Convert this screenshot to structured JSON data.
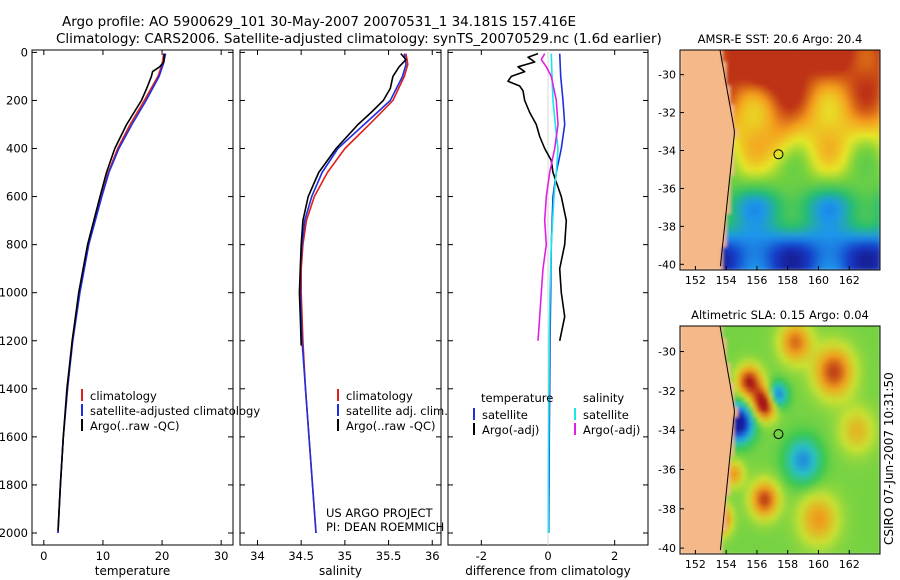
{
  "header": {
    "line1": "Argo profile: AO 5900629_101 30-May-2007 20070531_1 34.181S 157.416E",
    "line2": "Climatology: CARS2006. Satellite-adjusted climatology: synTS_20070529.nc (1.6d earlier)"
  },
  "credits": {
    "project": "US ARGO PROJECT",
    "pi": "PI: DEAN ROEMMICH",
    "stamp": "CSIRO 07-Jun-2007 10:31:50"
  },
  "colors": {
    "climatology": "#e0201a",
    "satellite": "#1f2fe0",
    "argo": "#000000",
    "salinity_sat": "#18e8e8",
    "salinity_argo": "#e020e0",
    "land": "#f5b888"
  },
  "chart_data": [
    {
      "id": "temperature",
      "type": "line",
      "xlabel": "temperature",
      "ylabel": "",
      "xlim": [
        -2,
        32
      ],
      "ylim": [
        2050,
        -10
      ],
      "xticks": [
        "0",
        "10",
        "20",
        "30"
      ],
      "yticks": [
        "0",
        "200",
        "400",
        "600",
        "800",
        "1000",
        "1200",
        "1400",
        "1600",
        "1800",
        "2000"
      ],
      "legend_position": "bottom-left",
      "legend": [
        "climatology",
        "satellite-adjusted climatology",
        "Argo(..raw -QC)"
      ],
      "series": [
        {
          "name": "climatology",
          "depth": [
            5,
            50,
            100,
            200,
            300,
            400,
            500,
            600,
            800,
            1000,
            1200,
            1400,
            1600,
            1800,
            2000
          ],
          "values": [
            20.3,
            20.0,
            19.3,
            17.0,
            14.6,
            12.5,
            10.9,
            9.7,
            7.5,
            6.0,
            4.8,
            4.0,
            3.3,
            2.8,
            2.4
          ]
        },
        {
          "name": "satellite-adjusted climatology",
          "depth": [
            5,
            50,
            100,
            200,
            300,
            400,
            500,
            600,
            800,
            1000,
            1200,
            1400,
            1600,
            1800,
            2000
          ],
          "values": [
            20.6,
            20.2,
            19.5,
            17.3,
            14.9,
            12.7,
            11.0,
            9.8,
            7.6,
            6.1,
            4.9,
            4.0,
            3.3,
            2.8,
            2.4
          ]
        },
        {
          "name": "Argo(..raw -QC)",
          "depth": [
            5,
            40,
            60,
            80,
            100,
            150,
            200,
            300,
            400,
            500,
            600,
            800,
            1000,
            1200,
            1400,
            1600,
            1800,
            1990
          ],
          "values": [
            20.4,
            20.3,
            19.6,
            18.4,
            18.2,
            17.4,
            16.5,
            14.0,
            12.0,
            10.6,
            9.5,
            7.4,
            5.9,
            4.8,
            3.9,
            3.3,
            2.8,
            2.4
          ]
        }
      ]
    },
    {
      "id": "salinity",
      "type": "line",
      "xlabel": "salinity",
      "ylabel": "",
      "xlim": [
        33.8,
        36.1
      ],
      "ylim": [
        2050,
        -10
      ],
      "xticks": [
        "34",
        "34.5",
        "35",
        "35.5",
        "36"
      ],
      "legend_position": "bottom-left",
      "legend": [
        "climatology",
        "satellite adj. clim.",
        "Argo(..raw -QC)"
      ],
      "series": [
        {
          "name": "climatology",
          "depth": [
            5,
            50,
            100,
            200,
            300,
            400,
            500,
            600,
            700,
            800,
            900,
            1000,
            1200,
            1400,
            1600,
            1800,
            2000
          ],
          "values": [
            35.7,
            35.72,
            35.68,
            35.55,
            35.28,
            35.0,
            34.8,
            34.65,
            34.56,
            34.52,
            34.5,
            34.5,
            34.52,
            34.55,
            34.59,
            34.63,
            34.67
          ]
        },
        {
          "name": "satellite adj. clim.",
          "depth": [
            5,
            50,
            100,
            200,
            300,
            400,
            500,
            600,
            700,
            800,
            900,
            1000,
            1200,
            1400,
            1600,
            1800,
            2000
          ],
          "values": [
            35.68,
            35.7,
            35.66,
            35.52,
            35.22,
            34.92,
            34.74,
            34.62,
            34.54,
            34.51,
            34.49,
            34.49,
            34.51,
            34.55,
            34.59,
            34.63,
            34.67
          ]
        },
        {
          "name": "Argo(..raw -QC)",
          "depth": [
            5,
            30,
            60,
            100,
            150,
            200,
            250,
            300,
            400,
            500,
            600,
            700,
            800,
            900,
            1000,
            1100,
            1220
          ],
          "values": [
            35.64,
            35.7,
            35.62,
            35.55,
            35.52,
            35.44,
            35.3,
            35.15,
            34.9,
            34.7,
            34.58,
            34.52,
            34.5,
            34.49,
            34.48,
            34.49,
            34.5
          ]
        }
      ]
    },
    {
      "id": "difference",
      "type": "line",
      "xlabel": "difference from climatology",
      "ylabel": "",
      "xlim": [
        -3,
        3
      ],
      "ylim": [
        2050,
        -10
      ],
      "xticks": [
        "-2",
        "0",
        "2"
      ],
      "legend_position": "bottom",
      "legend_headers": [
        "temperature",
        "salinity"
      ],
      "legend": [
        "satellite",
        "Argo(-adj)",
        "satellite",
        "Argo(-adj)"
      ],
      "series": [
        {
          "name": "temperature satellite",
          "depth": [
            5,
            100,
            200,
            300,
            400,
            500,
            600,
            800,
            1000,
            1200,
            1400,
            1600,
            1800,
            2000
          ],
          "values": [
            0.35,
            0.38,
            0.45,
            0.5,
            0.4,
            0.25,
            0.15,
            0.1,
            0.08,
            0.06,
            0.05,
            0.04,
            0.03,
            0.02
          ]
        },
        {
          "name": "temperature Argo(-adj)",
          "depth": [
            5,
            20,
            40,
            60,
            80,
            100,
            120,
            140,
            160,
            200,
            250,
            300,
            350,
            400,
            450,
            500,
            600,
            700,
            800,
            900,
            1000,
            1100,
            1200
          ],
          "values": [
            -0.3,
            -0.6,
            -0.4,
            -0.9,
            -0.7,
            -1.1,
            -1.2,
            -0.85,
            -0.75,
            -0.7,
            -0.55,
            -0.35,
            -0.25,
            -0.1,
            0.1,
            0.15,
            0.4,
            0.55,
            0.5,
            0.35,
            0.4,
            0.5,
            0.35
          ]
        },
        {
          "name": "salinity satellite",
          "depth": [
            5,
            100,
            200,
            300,
            400,
            500,
            600,
            800,
            1000,
            1200,
            1400,
            1600,
            1800,
            2000
          ],
          "values": [
            0.1,
            0.12,
            0.15,
            0.22,
            0.3,
            0.25,
            0.18,
            0.1,
            0.06,
            0.04,
            0.03,
            0.02,
            0.01,
            0.01
          ]
        },
        {
          "name": "salinity Argo(-adj)",
          "depth": [
            5,
            30,
            60,
            100,
            200,
            300,
            400,
            500,
            600,
            700,
            800,
            900,
            1000,
            1100,
            1200
          ],
          "values": [
            -0.1,
            -0.2,
            -0.05,
            0.1,
            0.25,
            0.3,
            0.2,
            0.05,
            -0.05,
            -0.1,
            -0.05,
            -0.15,
            -0.2,
            -0.25,
            -0.3
          ]
        }
      ]
    },
    {
      "id": "sst_map",
      "type": "heatmap",
      "title": "AMSR-E SST: 20.6 Argo: 20.4",
      "xlim": [
        151,
        164
      ],
      "ylim": [
        -40.3,
        -28.7
      ],
      "xticks": [
        "152",
        "154",
        "156",
        "158",
        "160",
        "162"
      ],
      "yticks": [
        "-30",
        "-32",
        "-34",
        "-36",
        "-38",
        "-40"
      ],
      "marker": {
        "lon": 157.4,
        "lat": -34.2
      }
    },
    {
      "id": "sla_map",
      "type": "heatmap",
      "title": "Altimetric SLA: 0.15 Argo: 0.04",
      "xlim": [
        151,
        164
      ],
      "ylim": [
        -40.3,
        -28.7
      ],
      "xticks": [
        "152",
        "154",
        "156",
        "158",
        "160",
        "162"
      ],
      "yticks": [
        "-30",
        "-32",
        "-34",
        "-36",
        "-38",
        "-40"
      ],
      "marker": {
        "lon": 157.4,
        "lat": -34.2
      }
    }
  ]
}
